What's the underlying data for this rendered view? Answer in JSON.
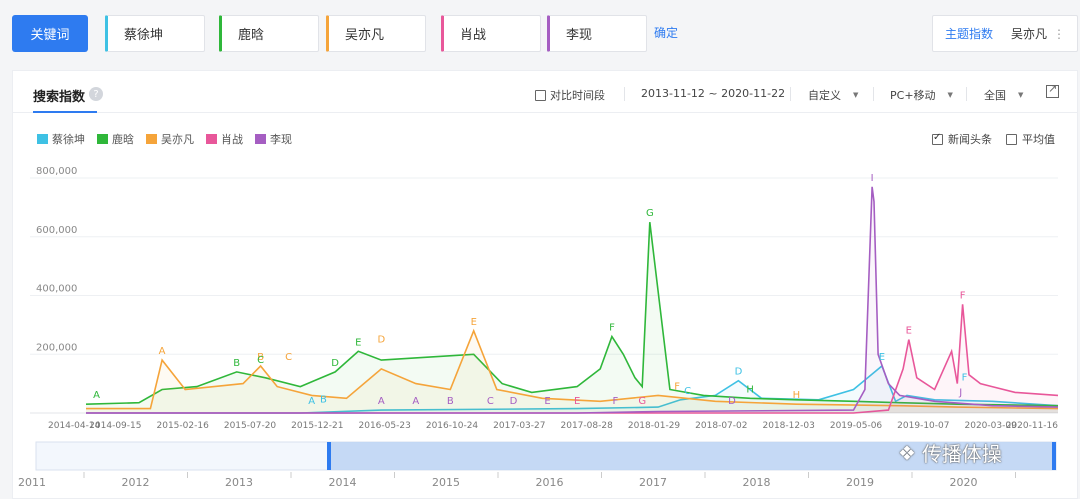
{
  "toolbar": {
    "keyword_button": "关键词",
    "terms": [
      {
        "label": "蔡徐坤",
        "color": "#3ec1e4"
      },
      {
        "label": "鹿晗",
        "color": "#2fb73a"
      },
      {
        "label": "吴亦凡",
        "color": "#f5a43a"
      },
      {
        "label": "肖战",
        "color": "#e8579a"
      },
      {
        "label": "李现",
        "color": "#a55ec2"
      }
    ],
    "confirm": "确定",
    "topic_label": "主题指数",
    "topic_value": "吴亦凡",
    "topic_more": "⋮"
  },
  "panel": {
    "tab": "搜索指数",
    "help": "?",
    "compare": "对比时间段",
    "date_range": "2013-11-12 ~ 2020-11-22",
    "custom": "自定义",
    "device": "PC+移动",
    "region": "全国",
    "news": "新闻头条",
    "average": "平均值"
  },
  "watermark": "传播体操",
  "chart_data": {
    "type": "line",
    "title": "",
    "xlabel": "",
    "ylabel": "",
    "ylim": [
      0,
      800000
    ],
    "yticks": [
      "800,000",
      "600,000",
      "400,000",
      "200,000"
    ],
    "ytick_values": [
      800000,
      600000,
      400000,
      200000
    ],
    "grid": true,
    "legend_position": "top-left",
    "xtick_labels": [
      "2014-04-14",
      "2014-09-15",
      "2015-02-16",
      "2015-07-20",
      "2015-12-21",
      "2016-05-23",
      "2016-10-24",
      "2017-03-27",
      "2017-08-28",
      "2018-01-29",
      "2018-07-02",
      "2018-12-03",
      "2019-05-06",
      "2019-10-07",
      "2020-03-09",
      "2020-11-16"
    ],
    "navigator_years": [
      "2011",
      "2012",
      "2013",
      "2014",
      "2015",
      "2016",
      "2017",
      "2018",
      "2019",
      "2020"
    ],
    "x_start": "2013-11-12",
    "x_end": "2020-11-22",
    "series": [
      {
        "name": "蔡徐坤",
        "color": "#3ec1e4",
        "x": [
          "2013-11-12",
          "2015-06-01",
          "2016-01-01",
          "2017-06-01",
          "2018-01-01",
          "2018-03-01",
          "2018-06-01",
          "2018-08-01",
          "2018-10-01",
          "2019-03-01",
          "2019-06-01",
          "2019-08-15",
          "2019-09-20",
          "2019-10-20",
          "2020-01-01",
          "2020-06-01",
          "2020-11-22"
        ],
        "y": [
          0,
          0,
          10000,
          15000,
          20000,
          45000,
          60000,
          110000,
          50000,
          45000,
          80000,
          160000,
          40000,
          60000,
          45000,
          40000,
          25000
        ]
      },
      {
        "name": "鹿晗",
        "color": "#2fb73a",
        "x": [
          "2013-11-12",
          "2014-04-01",
          "2014-06-01",
          "2014-09-01",
          "2014-12-15",
          "2015-03-01",
          "2015-06-01",
          "2015-09-01",
          "2015-11-01",
          "2016-01-01",
          "2016-05-01",
          "2016-09-01",
          "2016-11-15",
          "2017-02-01",
          "2017-06-01",
          "2017-08-01",
          "2017-09-01",
          "2017-10-01",
          "2017-11-01",
          "2017-11-20",
          "2017-12-10",
          "2018-02-01",
          "2018-05-01",
          "2018-09-01",
          "2019-01-01",
          "2019-06-01",
          "2019-10-01",
          "2020-03-01",
          "2020-11-22"
        ],
        "y": [
          30000,
          35000,
          80000,
          90000,
          140000,
          120000,
          90000,
          140000,
          210000,
          180000,
          190000,
          200000,
          100000,
          70000,
          90000,
          150000,
          260000,
          200000,
          120000,
          90000,
          650000,
          80000,
          60000,
          50000,
          45000,
          40000,
          35000,
          30000,
          25000
        ]
      },
      {
        "name": "吴亦凡",
        "color": "#f5a43a",
        "x": [
          "2013-11-12",
          "2014-05-01",
          "2014-06-01",
          "2014-08-01",
          "2015-01-01",
          "2015-02-16",
          "2015-04-01",
          "2015-07-01",
          "2015-10-01",
          "2016-01-01",
          "2016-04-01",
          "2016-07-01",
          "2016-09-01",
          "2016-11-01",
          "2017-03-01",
          "2017-08-01",
          "2018-01-01",
          "2018-06-01",
          "2019-01-01",
          "2019-10-01",
          "2020-03-01",
          "2020-11-22"
        ],
        "y": [
          15000,
          15000,
          180000,
          80000,
          100000,
          160000,
          90000,
          60000,
          50000,
          150000,
          100000,
          80000,
          280000,
          80000,
          50000,
          40000,
          60000,
          40000,
          30000,
          25000,
          20000,
          15000
        ]
      },
      {
        "name": "肖战",
        "color": "#e8579a",
        "x": [
          "2013-11-12",
          "2019-06-01",
          "2019-09-01",
          "2019-10-10",
          "2019-10-25",
          "2019-11-15",
          "2020-01-01",
          "2020-02-15",
          "2020-03-01",
          "2020-03-15",
          "2020-04-01",
          "2020-05-01",
          "2020-06-01",
          "2020-08-01",
          "2020-11-22"
        ],
        "y": [
          0,
          0,
          10000,
          150000,
          250000,
          120000,
          80000,
          210000,
          100000,
          370000,
          130000,
          100000,
          90000,
          70000,
          60000
        ]
      },
      {
        "name": "李现",
        "color": "#a55ec2",
        "x": [
          "2013-11-12",
          "2017-06-01",
          "2018-01-01",
          "2019-06-01",
          "2019-07-01",
          "2019-07-20",
          "2019-07-25",
          "2019-08-05",
          "2019-09-01",
          "2019-10-01",
          "2020-01-01",
          "2020-06-01",
          "2020-11-22"
        ],
        "y": [
          0,
          0,
          5000,
          10000,
          80000,
          770000,
          720000,
          200000,
          100000,
          60000,
          40000,
          25000,
          20000
        ]
      }
    ],
    "annotations": [
      {
        "series": "鹿晗",
        "label": "A",
        "x": "2013-12-10",
        "y": 30000
      },
      {
        "series": "吴亦凡",
        "label": "A",
        "x": "2014-06-01",
        "y": 180000
      },
      {
        "series": "鹿晗",
        "label": "B",
        "x": "2014-12-15",
        "y": 140000
      },
      {
        "series": "吴亦凡",
        "label": "B",
        "x": "2015-02-16",
        "y": 160000
      },
      {
        "series": "吴亦凡",
        "label": "C",
        "x": "2015-05-01",
        "y": 160000
      },
      {
        "series": "鹿晗",
        "label": "C",
        "x": "2015-02-16",
        "y": 150000
      },
      {
        "series": "鹿晗",
        "label": "D",
        "x": "2015-09-01",
        "y": 140000
      },
      {
        "series": "蔡徐坤",
        "label": "A",
        "x": "2015-07-01",
        "y": 10000
      },
      {
        "series": "蔡徐坤",
        "label": "B",
        "x": "2015-08-01",
        "y": 15000
      },
      {
        "series": "鹿晗",
        "label": "E",
        "x": "2015-11-01",
        "y": 210000
      },
      {
        "series": "吴亦凡",
        "label": "D",
        "x": "2016-01-01",
        "y": 220000
      },
      {
        "series": "吴亦凡",
        "label": "E",
        "x": "2016-09-01",
        "y": 280000
      },
      {
        "series": "李现",
        "label": "A",
        "x": "2016-01-01",
        "y": 10000
      },
      {
        "series": "李现",
        "label": "A",
        "x": "2016-04-01",
        "y": 10000
      },
      {
        "series": "李现",
        "label": "B",
        "x": "2016-07-01",
        "y": 10000
      },
      {
        "series": "李现",
        "label": "C",
        "x": "2016-10-15",
        "y": 10000
      },
      {
        "series": "李现",
        "label": "D",
        "x": "2016-12-15",
        "y": 10000
      },
      {
        "series": "李现",
        "label": "E",
        "x": "2017-03-15",
        "y": 10000
      },
      {
        "series": "肖战",
        "label": "E",
        "x": "2017-06-01",
        "y": 10000
      },
      {
        "series": "鹿晗",
        "label": "F",
        "x": "2017-09-01",
        "y": 260000
      },
      {
        "series": "李现",
        "label": "F",
        "x": "2017-09-10",
        "y": 10000
      },
      {
        "series": "肖战",
        "label": "G",
        "x": "2017-11-20",
        "y": 10000
      },
      {
        "series": "鹿晗",
        "label": "G",
        "x": "2017-12-10",
        "y": 650000
      },
      {
        "series": "吴亦凡",
        "label": "F",
        "x": "2018-02-20",
        "y": 60000
      },
      {
        "series": "蔡徐坤",
        "label": "C",
        "x": "2018-03-20",
        "y": 45000
      },
      {
        "series": "李现",
        "label": "D",
        "x": "2018-07-15",
        "y": 10000
      },
      {
        "series": "蔡徐坤",
        "label": "D",
        "x": "2018-08-01",
        "y": 110000
      },
      {
        "series": "吴亦凡",
        "label": "H",
        "x": "2019-01-01",
        "y": 30000
      },
      {
        "series": "鹿晗",
        "label": "H",
        "x": "2018-09-01",
        "y": 50000
      },
      {
        "series": "蔡徐坤",
        "label": "E",
        "x": "2019-08-15",
        "y": 160000
      },
      {
        "series": "李现",
        "label": "I",
        "x": "2019-07-20",
        "y": 770000
      },
      {
        "series": "肖战",
        "label": "E",
        "x": "2019-10-25",
        "y": 250000
      },
      {
        "series": "肖战",
        "label": "F",
        "x": "2020-03-15",
        "y": 370000
      },
      {
        "series": "蔡徐坤",
        "label": "F",
        "x": "2020-03-20",
        "y": 90000
      },
      {
        "series": "李现",
        "label": "J",
        "x": "2020-03-10",
        "y": 40000
      }
    ]
  }
}
